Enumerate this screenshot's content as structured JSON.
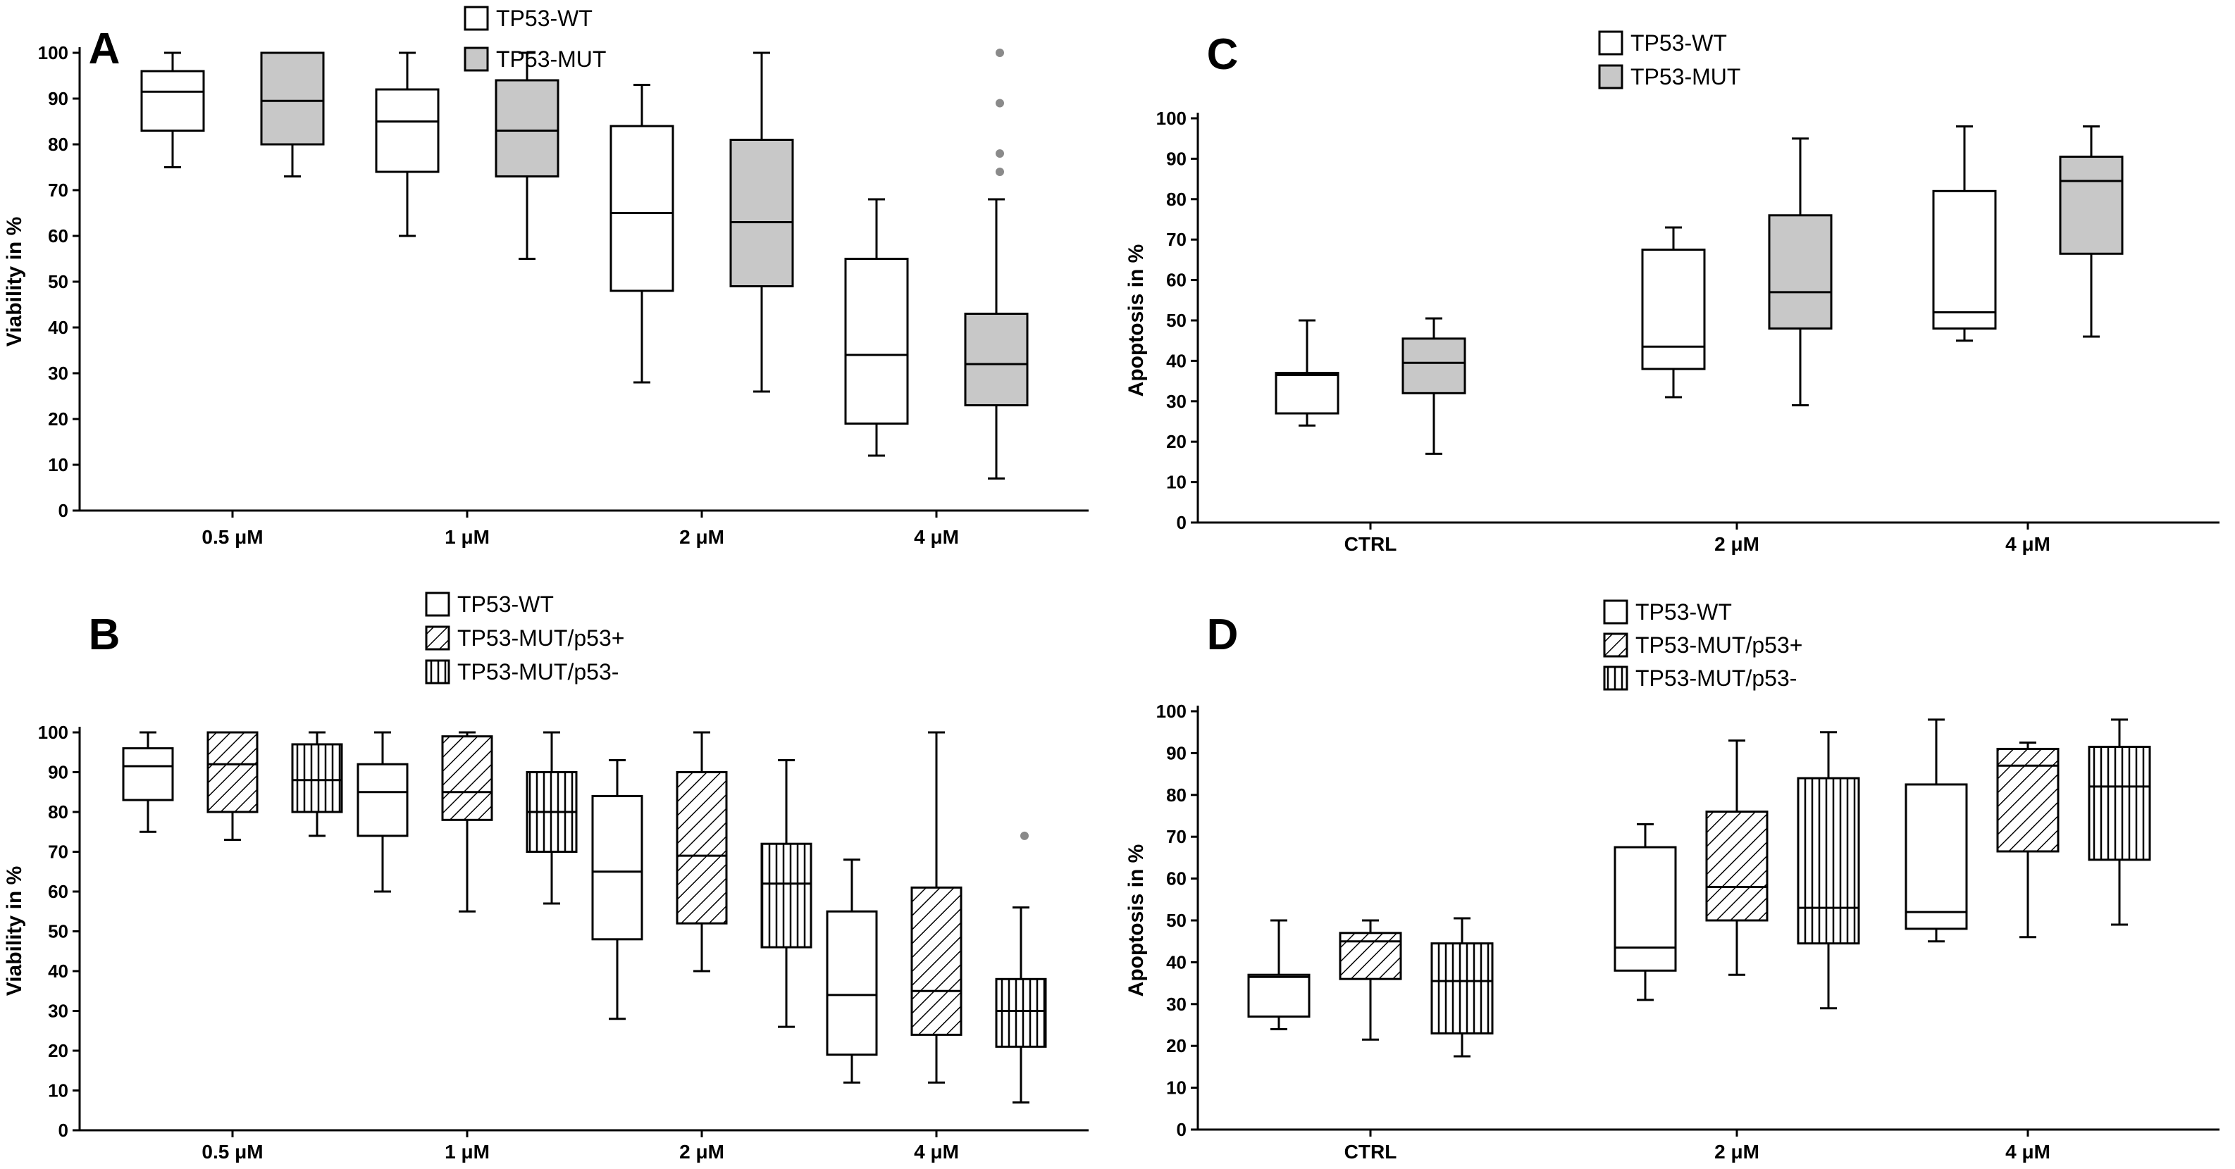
{
  "colors": {
    "white_fill": "#ffffff",
    "gray_fill": "#c8c8c8",
    "outlier": "#8a8a8a",
    "line": "#000000"
  },
  "chart_data": [
    {
      "panel": "A",
      "type": "box",
      "ylabel": "Viability in %",
      "ylim": [
        0,
        100
      ],
      "yticks": [
        "0",
        "10",
        "20",
        "30",
        "40",
        "50",
        "60",
        "70",
        "80",
        "90",
        "100"
      ],
      "categories": [
        "0.5 μM",
        "1 μM",
        "2 μM",
        "4 μM"
      ],
      "legend": [
        "TP53-WT",
        "TP53-MUT"
      ],
      "series": [
        {
          "name": "TP53-WT",
          "fill": "white",
          "boxes": [
            {
              "whisker_low": 75,
              "q1": 83,
              "median": 91.5,
              "q3": 96,
              "whisker_high": 100,
              "outliers": []
            },
            {
              "whisker_low": 60,
              "q1": 74,
              "median": 85,
              "q3": 92,
              "whisker_high": 100,
              "outliers": []
            },
            {
              "whisker_low": 28,
              "q1": 48,
              "median": 65,
              "q3": 84,
              "whisker_high": 93,
              "outliers": []
            },
            {
              "whisker_low": 12,
              "q1": 19,
              "median": 34,
              "q3": 55,
              "whisker_high": 68,
              "outliers": []
            }
          ]
        },
        {
          "name": "TP53-MUT",
          "fill": "gray",
          "boxes": [
            {
              "whisker_low": 73,
              "q1": 80,
              "median": 89.5,
              "q3": 100,
              "whisker_high": 100,
              "outliers": []
            },
            {
              "whisker_low": 55,
              "q1": 73,
              "median": 83,
              "q3": 94,
              "whisker_high": 100,
              "outliers": []
            },
            {
              "whisker_low": 26,
              "q1": 49,
              "median": 63,
              "q3": 81,
              "whisker_high": 100,
              "outliers": []
            },
            {
              "whisker_low": 7,
              "q1": 23,
              "median": 32,
              "q3": 43,
              "whisker_high": 68,
              "outliers": [
                74,
                78,
                89,
                100
              ]
            }
          ]
        }
      ]
    },
    {
      "panel": "B",
      "type": "box",
      "ylabel": "Viability in %",
      "ylim": [
        0,
        100
      ],
      "yticks": [
        "0",
        "10",
        "20",
        "30",
        "40",
        "50",
        "60",
        "70",
        "80",
        "90",
        "100"
      ],
      "categories": [
        "0.5 μM",
        "1 μM",
        "2 μM",
        "4 μM"
      ],
      "legend": [
        "TP53-WT",
        "TP53-MUT/p53+",
        "TP53-MUT/p53-"
      ],
      "series": [
        {
          "name": "TP53-WT",
          "fill": "white",
          "boxes": [
            {
              "whisker_low": 75,
              "q1": 83,
              "median": 91.5,
              "q3": 96,
              "whisker_high": 100,
              "outliers": []
            },
            {
              "whisker_low": 60,
              "q1": 74,
              "median": 85,
              "q3": 92,
              "whisker_high": 100,
              "outliers": []
            },
            {
              "whisker_low": 28,
              "q1": 48,
              "median": 65,
              "q3": 84,
              "whisker_high": 93,
              "outliers": []
            },
            {
              "whisker_low": 12,
              "q1": 19,
              "median": 34,
              "q3": 55,
              "whisker_high": 68,
              "outliers": []
            }
          ]
        },
        {
          "name": "TP53-MUT/p53+",
          "fill": "diagonal",
          "boxes": [
            {
              "whisker_low": 73,
              "q1": 80,
              "median": 92,
              "q3": 100,
              "whisker_high": 100,
              "outliers": []
            },
            {
              "whisker_low": 55,
              "q1": 78,
              "median": 85,
              "q3": 99,
              "whisker_high": 100,
              "outliers": []
            },
            {
              "whisker_low": 40,
              "q1": 52,
              "median": 69,
              "q3": 90,
              "whisker_high": 100,
              "outliers": []
            },
            {
              "whisker_low": 12,
              "q1": 24,
              "median": 35,
              "q3": 61,
              "whisker_high": 100,
              "outliers": []
            }
          ]
        },
        {
          "name": "TP53-MUT/p53-",
          "fill": "vertical",
          "boxes": [
            {
              "whisker_low": 74,
              "q1": 80,
              "median": 88,
              "q3": 97,
              "whisker_high": 100,
              "outliers": []
            },
            {
              "whisker_low": 57,
              "q1": 70,
              "median": 80,
              "q3": 90,
              "whisker_high": 100,
              "outliers": []
            },
            {
              "whisker_low": 26,
              "q1": 46,
              "median": 62,
              "q3": 72,
              "whisker_high": 93,
              "outliers": []
            },
            {
              "whisker_low": 7,
              "q1": 21,
              "median": 30,
              "q3": 38,
              "whisker_high": 56,
              "outliers": [
                74
              ]
            }
          ]
        }
      ]
    },
    {
      "panel": "C",
      "type": "box",
      "ylabel": "Apoptosis in %",
      "ylim": [
        0,
        100
      ],
      "yticks": [
        "0",
        "10",
        "20",
        "30",
        "40",
        "50",
        "60",
        "70",
        "80",
        "90",
        "100"
      ],
      "categories": [
        "CTRL",
        "2 μM",
        "4 μM"
      ],
      "legend": [
        "TP53-WT",
        "TP53-MUT"
      ],
      "series": [
        {
          "name": "TP53-WT",
          "fill": "white",
          "boxes": [
            {
              "whisker_low": 24,
              "q1": 27,
              "median": 36.5,
              "q3": 37,
              "whisker_high": 50,
              "outliers": []
            },
            {
              "whisker_low": 31,
              "q1": 38,
              "median": 43.5,
              "q3": 67.5,
              "whisker_high": 73,
              "outliers": []
            },
            {
              "whisker_low": 45,
              "q1": 48,
              "median": 52,
              "q3": 82,
              "whisker_high": 98,
              "outliers": []
            }
          ]
        },
        {
          "name": "TP53-MUT",
          "fill": "gray",
          "boxes": [
            {
              "whisker_low": 17,
              "q1": 32,
              "median": 39.5,
              "q3": 45.5,
              "whisker_high": 50.5,
              "outliers": []
            },
            {
              "whisker_low": 29,
              "q1": 48,
              "median": 57,
              "q3": 76,
              "whisker_high": 95,
              "outliers": []
            },
            {
              "whisker_low": 46,
              "q1": 66.5,
              "median": 84.5,
              "q3": 90.5,
              "whisker_high": 98,
              "outliers": []
            }
          ]
        }
      ]
    },
    {
      "panel": "D",
      "type": "box",
      "ylabel": "Apoptosis in %",
      "ylim": [
        0,
        100
      ],
      "yticks": [
        "0",
        "10",
        "20",
        "30",
        "40",
        "50",
        "60",
        "70",
        "80",
        "90",
        "100"
      ],
      "categories": [
        "CTRL",
        "2 μM",
        "4 μM"
      ],
      "legend": [
        "TP53-WT",
        "TP53-MUT/p53+",
        "TP53-MUT/p53-"
      ],
      "series": [
        {
          "name": "TP53-WT",
          "fill": "white",
          "boxes": [
            {
              "whisker_low": 24,
              "q1": 27,
              "median": 36.5,
              "q3": 37,
              "whisker_high": 50,
              "outliers": []
            },
            {
              "whisker_low": 31,
              "q1": 38,
              "median": 43.5,
              "q3": 67.5,
              "whisker_high": 73,
              "outliers": []
            },
            {
              "whisker_low": 45,
              "q1": 48,
              "median": 52,
              "q3": 82.5,
              "whisker_high": 98,
              "outliers": []
            }
          ]
        },
        {
          "name": "TP53-MUT/p53+",
          "fill": "diagonal",
          "boxes": [
            {
              "whisker_low": 21.5,
              "q1": 36,
              "median": 45,
              "q3": 47,
              "whisker_high": 50,
              "outliers": []
            },
            {
              "whisker_low": 37,
              "q1": 50,
              "median": 58,
              "q3": 76,
              "whisker_high": 93,
              "outliers": []
            },
            {
              "whisker_low": 46,
              "q1": 66.5,
              "median": 87,
              "q3": 91,
              "whisker_high": 92.5,
              "outliers": []
            }
          ]
        },
        {
          "name": "TP53-MUT/p53-",
          "fill": "vertical",
          "boxes": [
            {
              "whisker_low": 17.5,
              "q1": 23,
              "median": 35.5,
              "q3": 44.5,
              "whisker_high": 50.5,
              "outliers": []
            },
            {
              "whisker_low": 29,
              "q1": 44.5,
              "median": 53,
              "q3": 84,
              "whisker_high": 95,
              "outliers": []
            },
            {
              "whisker_low": 49,
              "q1": 64.5,
              "median": 82,
              "q3": 91.5,
              "whisker_high": 98,
              "outliers": []
            }
          ]
        }
      ]
    }
  ]
}
